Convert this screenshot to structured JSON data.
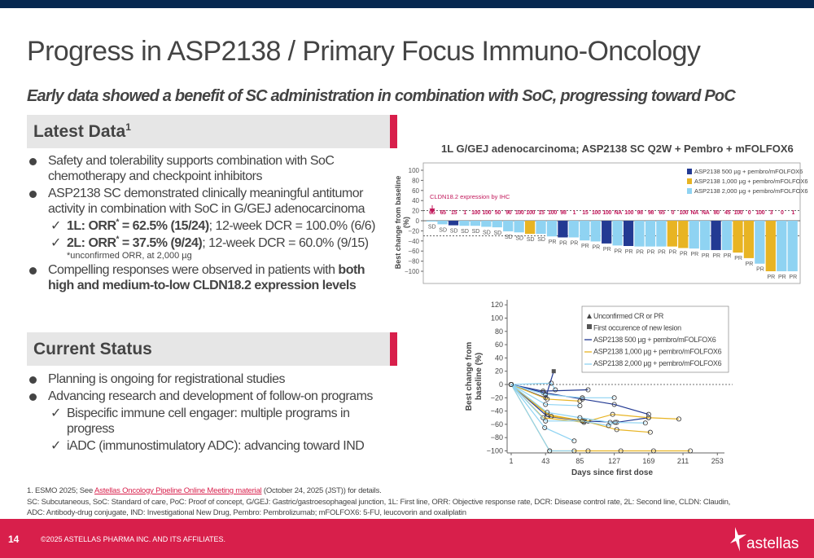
{
  "title": "Progress in ASP2138 / Primary Focus Immuno-Oncology",
  "subtitle": "Early data showed a benefit of SC administration in combination with SoC, progressing toward PoC",
  "latest": {
    "heading": "Latest Data",
    "sup": "1",
    "b1": "Safety and tolerability supports combination with SoC chemotherapy and checkpoint inhibitors",
    "b2": "ASP2138 SC demonstrated clinically meaningful antitumor activity in combination with SoC in G/GEJ adenocarcinoma",
    "c1_bold": "1L: ORR",
    "c1_sup": "*",
    "c1_bold2": " = 62.5% (15/24)",
    "c1_rest": "; 12-week DCR = 100.0% (6/6)",
    "c2_bold": "2L: ORR",
    "c2_sup": "*",
    "c2_bold2": " = 37.5% (9/24)",
    "c2_rest": "; 12-week DCR = 60.0% (9/15)",
    "c2_note": "*unconfirmed ORR, at 2,000 µg",
    "b3": "Compelling responses were observed in patients with ",
    "b3_bold": "both high and medium-to-low CLDN18.2 expression levels"
  },
  "status": {
    "heading": "Current Status",
    "b1": "Planning is ongoing for registrational studies",
    "b2": "Advancing research and development of follow-on programs",
    "c1": "Bispecific immune cell engager: multiple programs in progress",
    "c2": "iADC (immunostimulatory ADC): advancing toward IND"
  },
  "chart_data": [
    {
      "type": "bar",
      "title": "1L G/GEJ adenocarcinoma; ASP2138 SC Q2W + Pembro + mFOLFOX6",
      "ylabel": "Best change from baseline (%)",
      "ylim": [
        -100,
        100
      ],
      "yticks": [
        100,
        80,
        60,
        40,
        20,
        0,
        -20,
        -40,
        -60,
        -80,
        -100
      ],
      "annotation": "CLDN18.2 expression by IHC",
      "legend": [
        {
          "name": "ASP2138 500 µg + pembro/mFOLFOX6",
          "color": "#233a93"
        },
        {
          "name": "ASP2138 1,000 µg + pembro/mFOLFOX6",
          "color": "#e8b423"
        },
        {
          "name": "ASP2138 2,000 µg + pembro/mFOLFOX6",
          "color": "#8fd3f2"
        }
      ],
      "values": [
        -1,
        -7,
        -9,
        -10,
        -10,
        -12,
        -13,
        -21,
        -23,
        -26,
        -26,
        -31,
        -33,
        -33,
        -39,
        -41,
        -45,
        -49,
        -50,
        -51,
        -51,
        -51,
        -51,
        -54,
        -55,
        -58,
        -58,
        -58,
        -63,
        -74,
        -85,
        -100,
        -100,
        -100
      ],
      "dose": [
        2,
        2,
        0,
        2,
        2,
        2,
        2,
        2,
        2,
        1,
        2,
        2,
        0,
        2,
        2,
        2,
        0,
        2,
        0,
        2,
        2,
        2,
        1,
        1,
        2,
        2,
        0,
        2,
        1,
        1,
        2,
        1,
        2,
        2
      ],
      "cldn": [
        "65",
        "65",
        "15",
        "1",
        "100",
        "100",
        "50",
        "90",
        "100",
        "100",
        "15",
        "100",
        "98",
        "1",
        "15",
        "100",
        "100",
        "NA",
        "100",
        "98",
        "98",
        "65",
        "0",
        "100",
        "NA",
        "NA",
        "80",
        "45",
        "100",
        "0",
        "100",
        "3",
        "0",
        "1"
      ],
      "response": [
        "SD",
        "SD",
        "SD",
        "SD",
        "SD",
        "SD",
        "SD",
        "SD",
        "SD",
        "SD",
        "SD",
        "PR",
        "PR",
        "PR",
        "PR",
        "PR",
        "PR",
        "PR",
        "PR",
        "PR",
        "PR",
        "PR",
        "PR",
        "PR",
        "PR",
        "PR",
        "PR",
        "PR",
        "PR",
        "PR",
        "PR",
        "PR",
        "PR",
        "PR"
      ]
    },
    {
      "type": "line",
      "xlabel": "Days since first dose",
      "ylabel": "Best change from baseline (%)",
      "xticks": [
        1,
        43,
        85,
        127,
        169,
        211,
        253
      ],
      "yticks": [
        120,
        100,
        80,
        60,
        40,
        20,
        0,
        -20,
        -40,
        -60,
        -80,
        -100
      ],
      "xlim": [
        1,
        253
      ],
      "ylim": [
        -100,
        120
      ],
      "legend": [
        "Unconfirmed CR or PR",
        "First occurence of new lesion",
        "ASP2138 500 µg + pembro/mFOLFOX6",
        "ASP2138 1,000 µg + pembro/mFOLFOX6",
        "ASP2138 2,000 µg + pembro/mFOLFOX6"
      ],
      "colors": [
        "#233a93",
        "#e8b423",
        "#8fd3f2"
      ],
      "series": [
        {
          "dose": 0,
          "points": [
            [
              1,
              0
            ],
            [
              40,
              -10
            ],
            [
              95,
              -8
            ]
          ]
        },
        {
          "dose": 0,
          "points": [
            [
              1,
              0
            ],
            [
              40,
              -12
            ],
            [
              88,
              -22
            ],
            [
              127,
              -30
            ],
            [
              169,
              -45
            ]
          ]
        },
        {
          "dose": 0,
          "points": [
            [
              1,
              0
            ],
            [
              43,
              -20
            ],
            [
              53,
              20
            ]
          ],
          "lesion": true
        },
        {
          "dose": 0,
          "points": [
            [
              1,
              0
            ],
            [
              45,
              -48
            ],
            [
              90,
              -55
            ],
            [
              130,
              -57
            ],
            [
              169,
              -50
            ]
          ]
        },
        {
          "dose": 1,
          "points": [
            [
              1,
              0
            ],
            [
              48,
              -100
            ],
            [
              95,
              -100
            ],
            [
              135,
              -100
            ],
            [
              175,
              -100
            ],
            [
              220,
              -100
            ]
          ]
        },
        {
          "dose": 1,
          "points": [
            [
              1,
              0
            ],
            [
              45,
              -22
            ],
            [
              85,
              -25
            ]
          ]
        },
        {
          "dose": 1,
          "points": [
            [
              1,
              0
            ],
            [
              45,
              -45
            ],
            [
              90,
              -55
            ],
            [
              130,
              -68
            ],
            [
              171,
              -72
            ]
          ]
        },
        {
          "dose": 1,
          "points": [
            [
              1,
              0
            ],
            [
              50,
              -48
            ],
            [
              95,
              -55
            ],
            [
              125,
              -45
            ],
            [
              169,
              -50
            ],
            [
              206,
              -52
            ]
          ]
        },
        {
          "dose": 1,
          "points": [
            [
              1,
              0
            ],
            [
              40,
              -50
            ],
            [
              90,
              -57
            ]
          ]
        },
        {
          "dose": 2,
          "points": [
            [
              1,
              0
            ],
            [
              43,
              -15
            ],
            [
              88,
              -20
            ],
            [
              127,
              -20
            ]
          ]
        },
        {
          "dose": 2,
          "points": [
            [
              1,
              0
            ],
            [
              43,
              -30
            ],
            [
              85,
              -32
            ]
          ]
        },
        {
          "dose": 2,
          "points": [
            [
              1,
              0
            ],
            [
              48,
              -100
            ],
            [
              78,
              -100
            ]
          ]
        },
        {
          "dose": 2,
          "points": [
            [
              1,
              0
            ],
            [
              42,
              -65
            ],
            [
              78,
              -85
            ]
          ]
        },
        {
          "dose": 2,
          "points": [
            [
              1,
              0
            ],
            [
              45,
              -42
            ],
            [
              85,
              -50
            ],
            [
              122,
              -57
            ],
            [
              165,
              -58
            ]
          ]
        },
        {
          "dose": 2,
          "points": [
            [
              1,
              0
            ],
            [
              50,
              2
            ],
            [
              55,
              -8
            ]
          ]
        },
        {
          "dose": 2,
          "points": [
            [
              1,
              0
            ],
            [
              43,
              -55
            ],
            [
              88,
              -55
            ],
            [
              120,
              -62
            ],
            [
              128,
              -57
            ]
          ]
        }
      ]
    }
  ],
  "footnote": {
    "pre": "1. ESMO 2025; See ",
    "link": "Astellas Oncology Pipeline Online Meeting material",
    "post": " (October 24, 2025 (JST)) for details.",
    "abbr1": "SC: Subcutaneous, SoC: Standard of care, PoC: Proof of concept, G/GEJ: Gastric/gastroesophageal junction, 1L: First line, ORR: Objective response rate, DCR: Disease control rate, 2L: Second line, CLDN: Claudin,",
    "abbr2": "ADC: Antibody-drug conjugate, IND: Investigational New Drug, Pembro: Pembrolizumab; mFOLFOX6: 5-FU, leucovorin and oxaliplatin"
  },
  "footer": {
    "page": "14",
    "copyright": "©2025 ASTELLAS PHARMA INC. AND ITS AFFILIATES.",
    "logo": "astellas"
  }
}
